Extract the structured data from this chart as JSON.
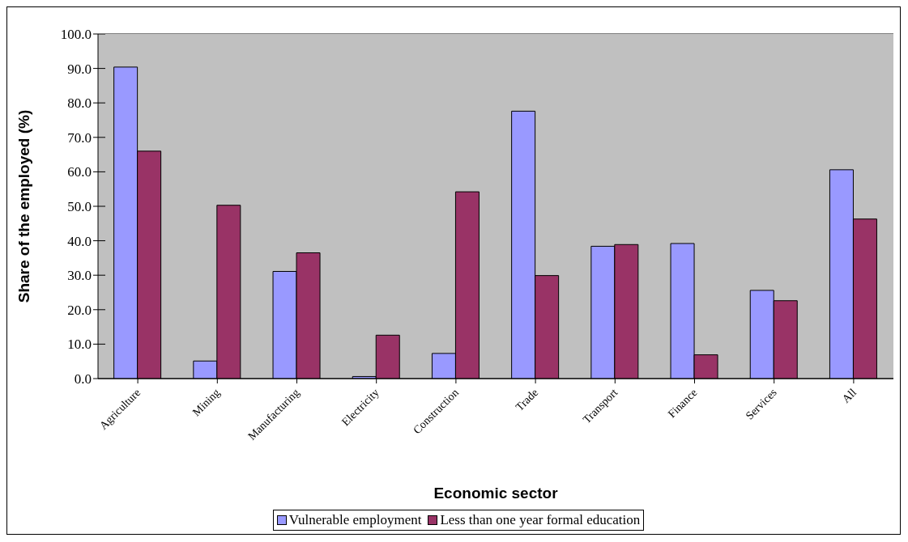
{
  "chart_data": {
    "type": "bar",
    "xlabel": "Economic sector",
    "ylabel": "Share of the employed (%)",
    "categories": [
      "Agriculture",
      "Mining",
      "Manufacturing",
      "Electricity",
      "Construction",
      "Trade",
      "Transport",
      "Finance",
      "Services",
      "All"
    ],
    "series": [
      {
        "name": "Vulnerable employment",
        "color": "#9999ff",
        "values": [
          90.4,
          5.1,
          31.1,
          0.6,
          7.3,
          77.6,
          38.4,
          39.2,
          25.6,
          60.6
        ]
      },
      {
        "name": "Less than one year formal education",
        "color": "#993366",
        "values": [
          66.0,
          50.3,
          36.5,
          12.6,
          54.2,
          29.9,
          38.9,
          6.9,
          22.6,
          46.3
        ]
      }
    ],
    "ylim": [
      0,
      100
    ],
    "yticks": [
      {
        "value": 0,
        "label": "0.0"
      },
      {
        "value": 10,
        "label": "10.0"
      },
      {
        "value": 20,
        "label": "20.0"
      },
      {
        "value": 30,
        "label": "30.0"
      },
      {
        "value": 40,
        "label": "40.0"
      },
      {
        "value": 50,
        "label": "50.0"
      },
      {
        "value": 60,
        "label": "60.0"
      },
      {
        "value": 70,
        "label": "70.0"
      },
      {
        "value": 80,
        "label": "80.0"
      },
      {
        "value": 90,
        "label": "90.0"
      },
      {
        "value": 100,
        "label": "100.0"
      }
    ],
    "grid": "y",
    "legend": "bottom"
  }
}
